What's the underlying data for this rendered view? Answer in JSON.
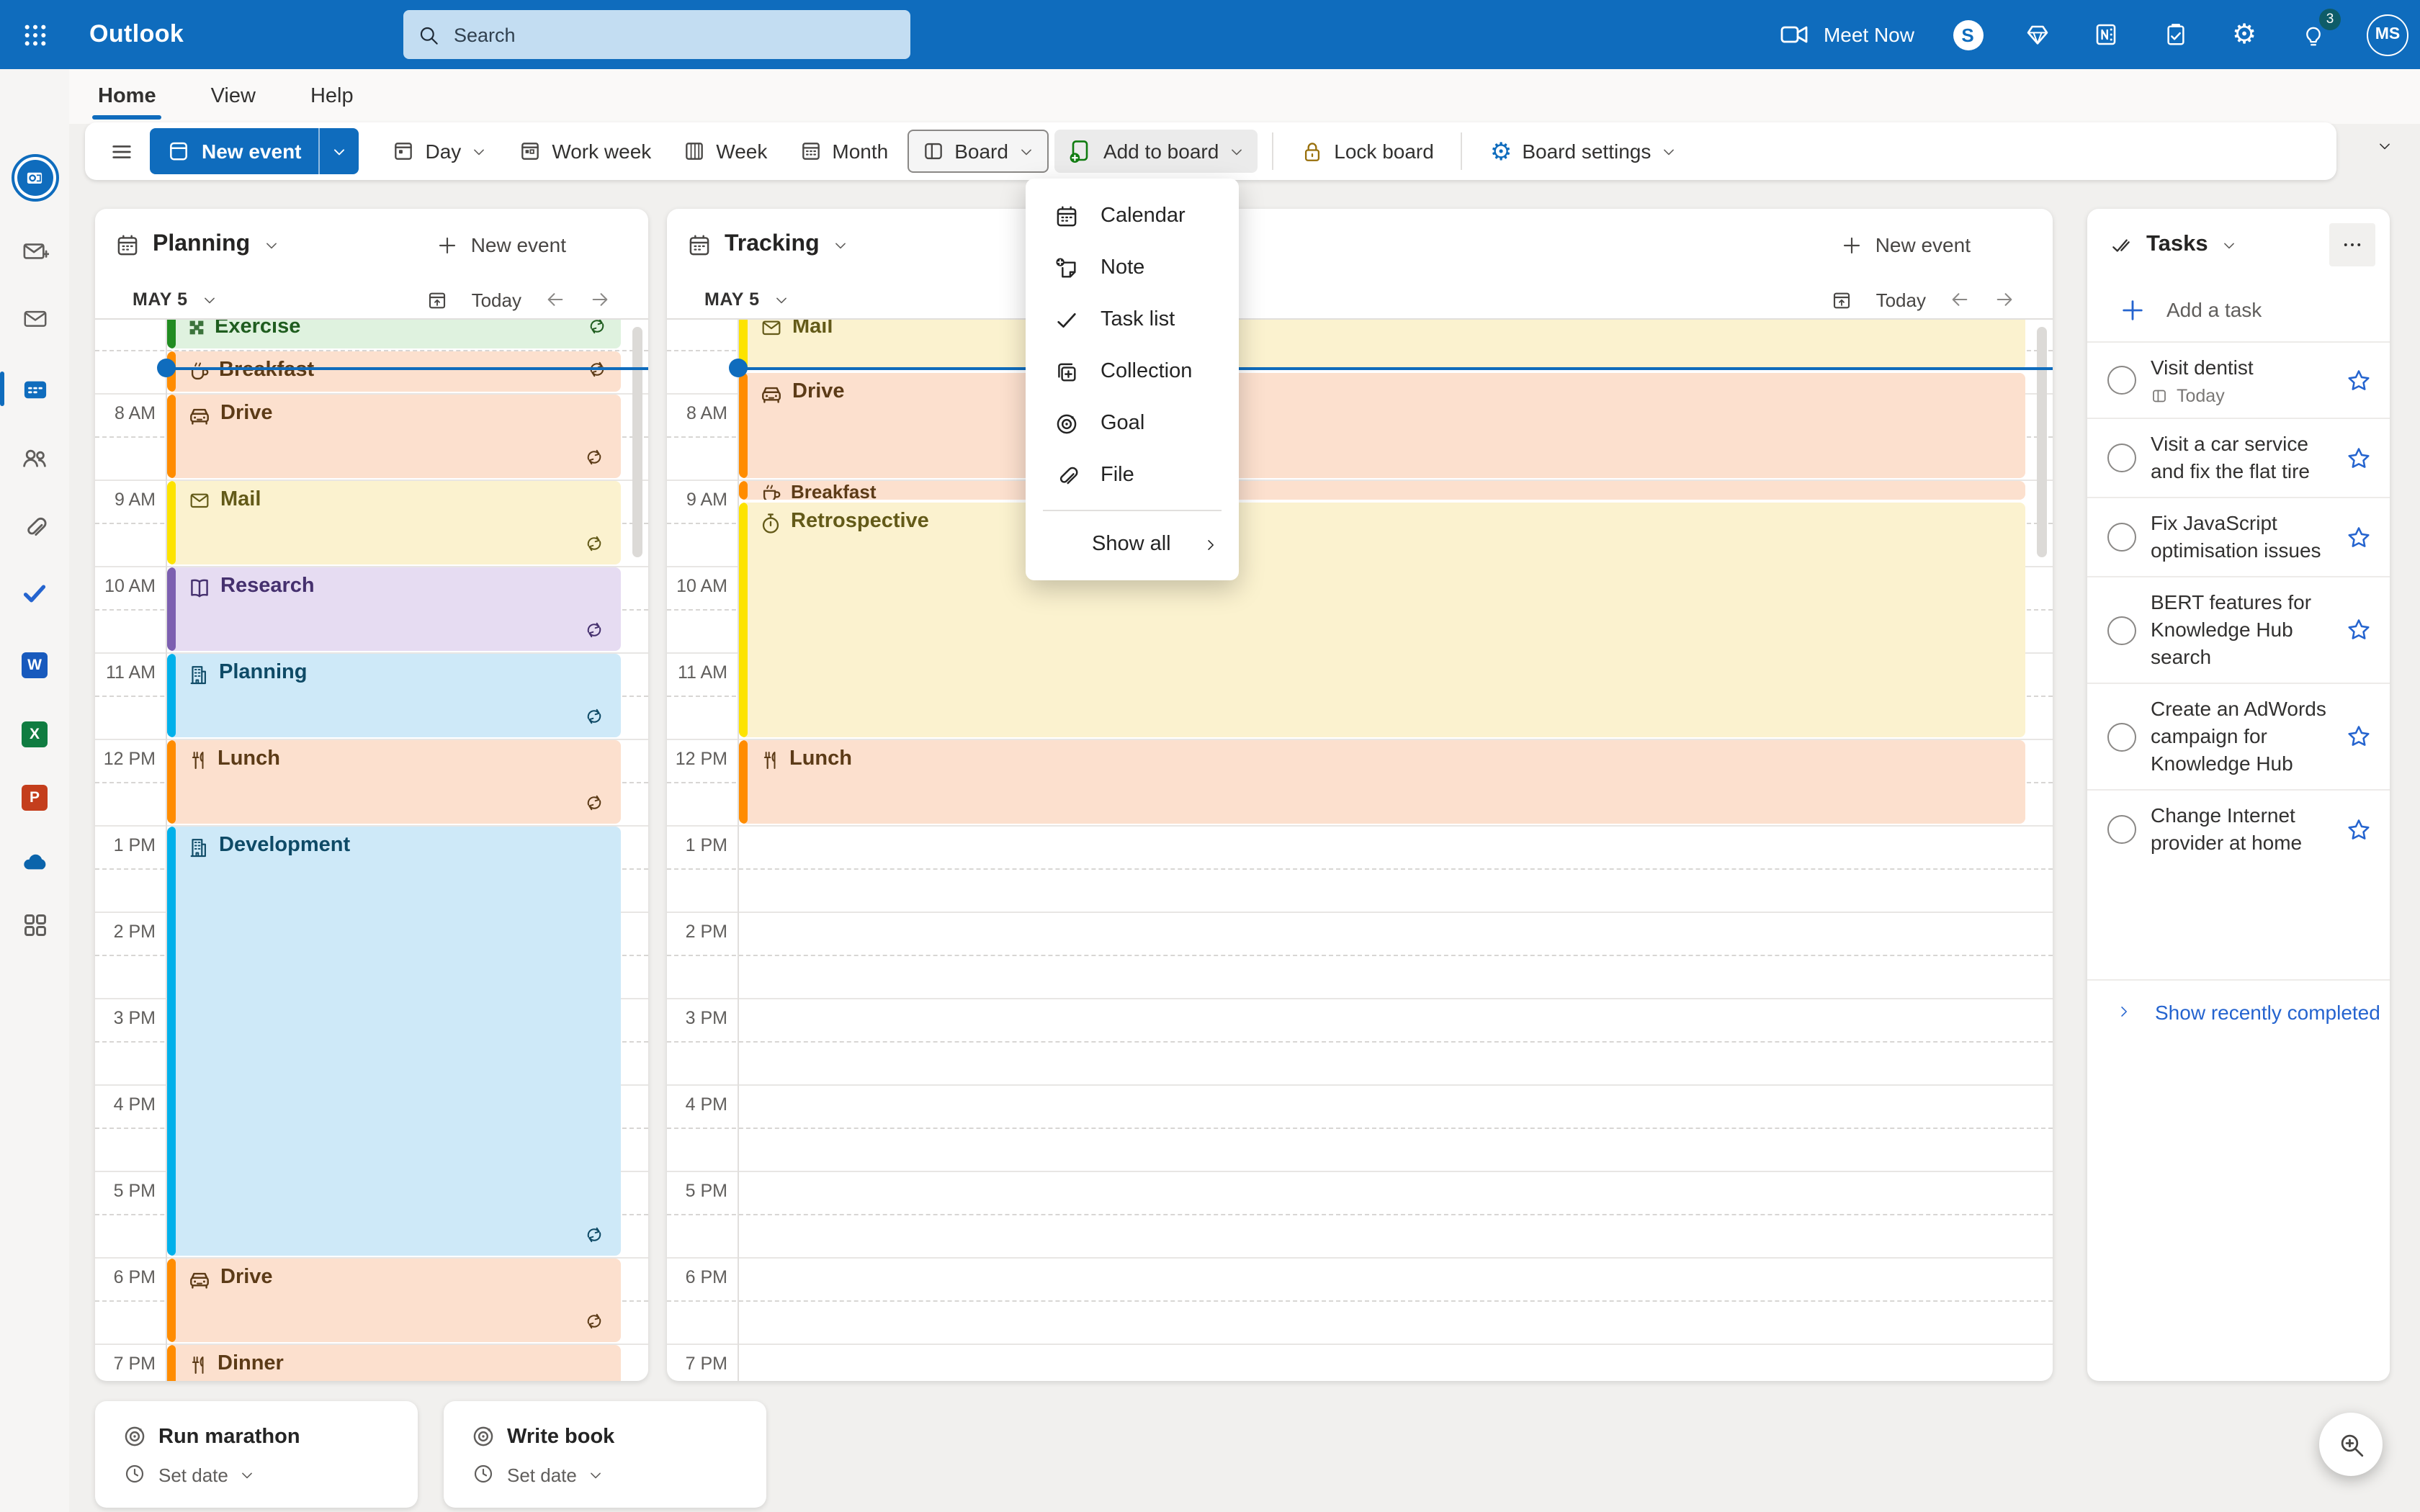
{
  "topbar": {
    "app_name": "Outlook",
    "search_placeholder": "Search",
    "meet_now_label": "Meet Now",
    "notification_badge": "3",
    "avatar_initials": "MS",
    "icons": [
      "video-camera-icon",
      "skype-icon",
      "premium-diamond-icon",
      "onenote-feed-icon",
      "checklist-icon",
      "settings-gear-icon",
      "lightbulb-icon"
    ]
  },
  "rail": {
    "items": [
      {
        "name": "outlook-logo",
        "active": false
      },
      {
        "name": "compose-mail",
        "active": false
      },
      {
        "name": "mail",
        "active": false
      },
      {
        "name": "calendar",
        "active": true
      },
      {
        "name": "people",
        "active": false
      },
      {
        "name": "attachments",
        "active": false
      },
      {
        "name": "todo",
        "active": false
      },
      {
        "name": "word",
        "active": false,
        "letter": "W",
        "color": "#185abd"
      },
      {
        "name": "excel",
        "active": false,
        "letter": "X",
        "color": "#107c41"
      },
      {
        "name": "powerpoint",
        "active": false,
        "letter": "P",
        "color": "#c43e1c"
      },
      {
        "name": "onedrive",
        "active": false
      },
      {
        "name": "more-apps",
        "active": false
      }
    ]
  },
  "ribbon": {
    "tabs": [
      {
        "label": "Home",
        "active": true
      },
      {
        "label": "View",
        "active": false
      },
      {
        "label": "Help",
        "active": false
      }
    ],
    "new_event_label": "New event",
    "view_buttons": [
      {
        "label": "Day",
        "icon": "view-day",
        "chevron": true,
        "selected": false
      },
      {
        "label": "Work week",
        "icon": "view-workweek",
        "chevron": false,
        "selected": false
      },
      {
        "label": "Week",
        "icon": "view-week",
        "chevron": false,
        "selected": false
      },
      {
        "label": "Month",
        "icon": "view-month",
        "chevron": false,
        "selected": false
      },
      {
        "label": "Board",
        "icon": "view-board",
        "chevron": true,
        "selected": true
      }
    ],
    "add_to_board_label": "Add to board",
    "lock_board_label": "Lock board",
    "board_settings_label": "Board settings"
  },
  "add_menu": {
    "items": [
      {
        "icon": "calendar",
        "label": "Calendar"
      },
      {
        "icon": "note",
        "label": "Note"
      },
      {
        "icon": "task-list",
        "label": "Task list"
      },
      {
        "icon": "collection",
        "label": "Collection"
      },
      {
        "icon": "goal",
        "label": "Goal"
      },
      {
        "icon": "file",
        "label": "File"
      }
    ],
    "show_all_label": "Show all"
  },
  "time_labels": [
    "8 AM",
    "9 AM",
    "10 AM",
    "11 AM",
    "12 PM",
    "1 PM",
    "2 PM",
    "3 PM",
    "4 PM",
    "5 PM",
    "6 PM",
    "7 PM"
  ],
  "current_time_hour": 7.7,
  "calendars": [
    {
      "id": "planning",
      "title": "Planning",
      "new_event_label": "New event",
      "date_label": "MAY 5",
      "today_label": "Today",
      "events": [
        {
          "title": "Exercise",
          "icon": "exercise",
          "color": "green",
          "start": 7.0,
          "end": 7.5,
          "recurring": true
        },
        {
          "title": "Breakfast",
          "icon": "coffee",
          "color": "orange",
          "start": 7.5,
          "end": 8.0,
          "recurring": true
        },
        {
          "title": "Drive",
          "icon": "car",
          "color": "orange",
          "start": 8.0,
          "end": 9.0,
          "recurring": true
        },
        {
          "title": "Mail",
          "icon": "mail",
          "color": "yellow",
          "start": 9.0,
          "end": 10.0,
          "recurring": true
        },
        {
          "title": "Research",
          "icon": "book",
          "color": "purple",
          "start": 10.0,
          "end": 11.0,
          "recurring": true
        },
        {
          "title": "Planning",
          "icon": "building",
          "color": "blue",
          "start": 11.0,
          "end": 12.0,
          "recurring": true
        },
        {
          "title": "Lunch",
          "icon": "food",
          "color": "orange",
          "start": 12.0,
          "end": 13.0,
          "recurring": true
        },
        {
          "title": "Development",
          "icon": "building",
          "color": "blue",
          "start": 13.0,
          "end": 18.0,
          "recurring": true
        },
        {
          "title": "Drive",
          "icon": "car",
          "color": "orange",
          "start": 18.0,
          "end": 19.0,
          "recurring": true
        },
        {
          "title": "Dinner",
          "icon": "food",
          "color": "orange",
          "start": 19.0,
          "end": 20.0,
          "recurring": false
        }
      ]
    },
    {
      "id": "tracking",
      "title": "Tracking",
      "new_event_label": "New event",
      "date_label": "MAY 5",
      "today_label": "Today",
      "events": [
        {
          "title": "Mail",
          "icon": "mail",
          "color": "yellow",
          "start": 7.0,
          "end": 7.75,
          "recurring": false
        },
        {
          "title": "Drive",
          "icon": "car",
          "color": "orange",
          "start": 7.75,
          "end": 9.0,
          "recurring": false
        },
        {
          "title": "Breakfast",
          "icon": "coffee",
          "color": "orange",
          "start": 9.0,
          "end": 9.25,
          "recurring": false
        },
        {
          "title": "Retrospective",
          "icon": "stopwatch",
          "color": "yellow",
          "start": 9.25,
          "end": 12.0,
          "recurring": false
        },
        {
          "title": "Lunch",
          "icon": "food",
          "color": "orange",
          "start": 12.0,
          "end": 13.0,
          "recurring": false
        }
      ]
    }
  ],
  "tasks_panel": {
    "title": "Tasks",
    "add_task_label": "Add a task",
    "items": [
      {
        "title": "Visit dentist",
        "due": "Today"
      },
      {
        "title": "Visit a car service and fix the flat tire",
        "due": ""
      },
      {
        "title": "Fix JavaScript optimisation issues",
        "due": ""
      },
      {
        "title": "BERT features for Knowledge Hub search",
        "due": ""
      },
      {
        "title": "Create an AdWords campaign for Knowledge Hub",
        "due": ""
      },
      {
        "title": "Change Internet provider at home",
        "due": ""
      }
    ],
    "show_completed_label": "Show recently completed"
  },
  "goal_cards": [
    {
      "title": "Run marathon",
      "date_label": "Set date"
    },
    {
      "title": "Write book",
      "date_label": "Set date"
    }
  ],
  "colors": {
    "brand": "#0f6cbd",
    "todo_blue": "#2564cf",
    "green_icon": "#107c10",
    "lock_gold": "#986f0b",
    "orange": {
      "bar": "#ff8c00",
      "bg": "#fce0ce",
      "text": "#5c3b17"
    },
    "yellow": {
      "bar": "#fde300",
      "bg": "#fbf2cf",
      "text": "#635a18"
    },
    "purple": {
      "bar": "#7c5fb0",
      "bg": "#e6dcf2",
      "text": "#45306e"
    },
    "blue": {
      "bar": "#00b0ea",
      "bg": "#cee9f8",
      "text": "#0e4a66"
    },
    "green": {
      "bar": "#218c21",
      "bg": "#dff2df",
      "text": "#1f5d1f"
    }
  }
}
